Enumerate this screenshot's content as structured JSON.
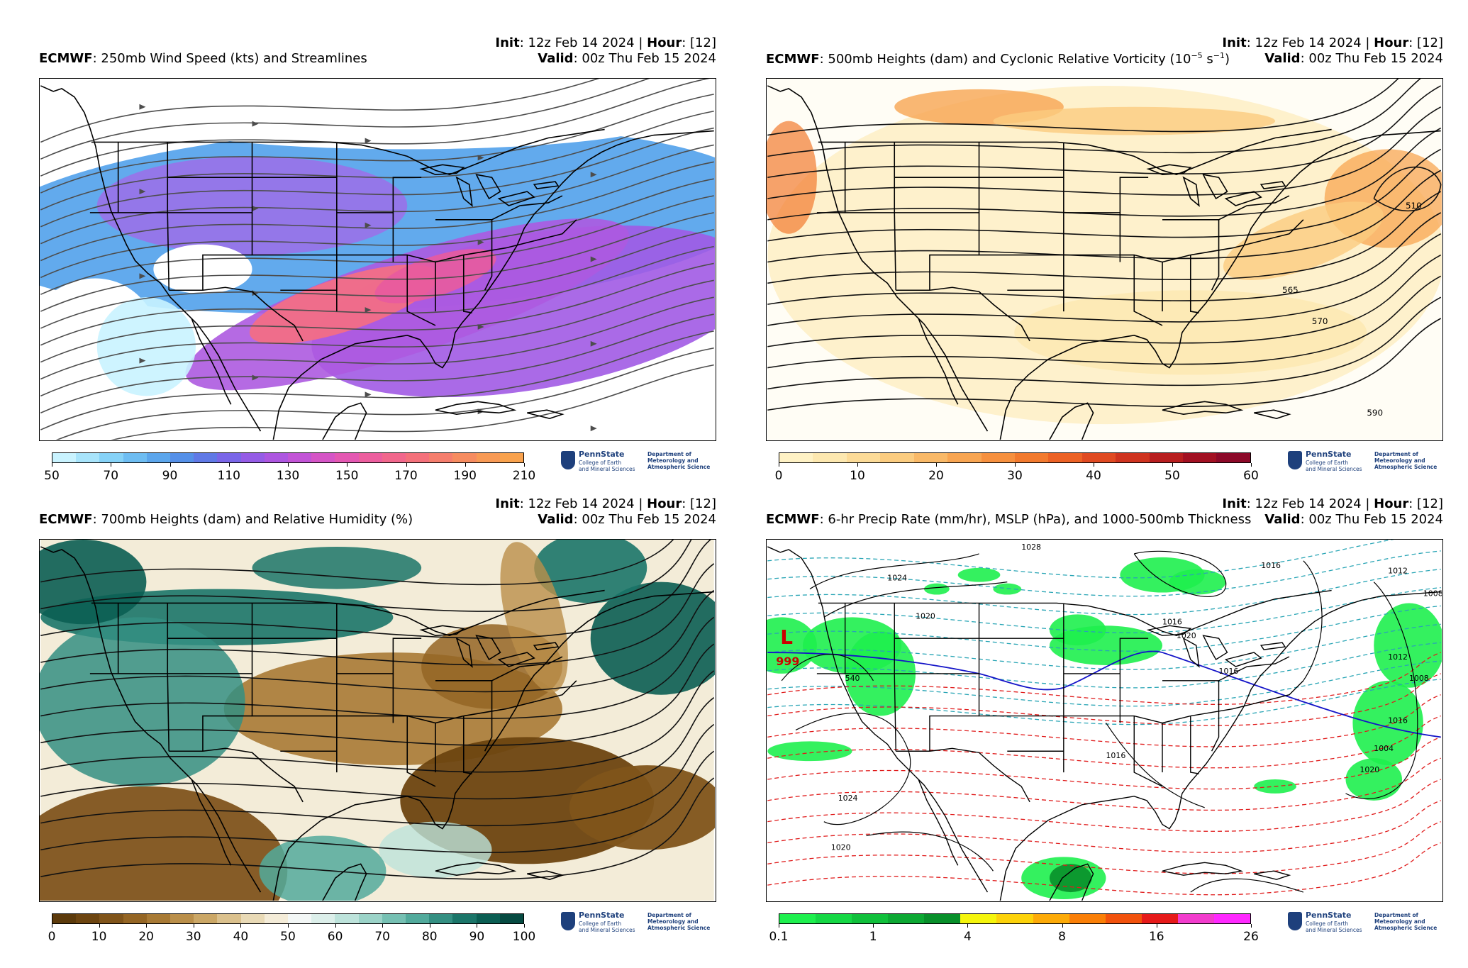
{
  "panels": [
    {
      "init_label": "Init",
      "init_value": ": 12z Feb 14 2024 | ",
      "hour_label": "Hour",
      "hour_value": ": [12]",
      "model": "ECMWF",
      "title": ": 250mb Wind Speed (kts) and Streamlines",
      "valid_label": "Valid",
      "valid_value": ": 00z Thu Feb 15 2024",
      "colorbar": {
        "ticks": [
          "50",
          "70",
          "90",
          "110",
          "130",
          "150",
          "170",
          "190",
          "210"
        ],
        "colors": [
          "#c9f3ff",
          "#a8e4fb",
          "#86d2f7",
          "#6ebdf2",
          "#5ca6ec",
          "#5590e8",
          "#6079e6",
          "#7a66e8",
          "#955ce6",
          "#ad56e0",
          "#c254d6",
          "#d555c6",
          "#e458b2",
          "#ec5e9e",
          "#f1678c",
          "#f4717b",
          "#f57e6d",
          "#f68c60",
          "#f89a55",
          "#f9a24d"
        ]
      },
      "map_labels": []
    },
    {
      "init_label": "Init",
      "init_value": ": 12z Feb 14 2024 | ",
      "hour_label": "Hour",
      "hour_value": ": [12]",
      "model": "ECMWF",
      "title": ": 500mb Heights (dam) and Cyclonic Relative Vorticity (10",
      "title_sup": "−5",
      "title_mid": " s",
      "title_sup2": "−1",
      "title_end": ")",
      "valid_label": "Valid",
      "valid_value": ": 00z Thu Feb 15 2024",
      "colorbar": {
        "ticks": [
          "0",
          "10",
          "20",
          "30",
          "40",
          "50",
          "60"
        ],
        "colors": [
          "#fff2c5",
          "#fde8b0",
          "#fcdb98",
          "#fbcc80",
          "#f9b968",
          "#f8a552",
          "#f6903f",
          "#f27a2f",
          "#ec6226",
          "#e04a22",
          "#cf331f",
          "#b81e1f",
          "#a21022",
          "#8c0828"
        ]
      },
      "map_labels": [
        "510",
        "565",
        "570",
        "590"
      ]
    },
    {
      "init_label": "Init",
      "init_value": ": 12z Feb 14 2024 | ",
      "hour_label": "Hour",
      "hour_value": ": [12]",
      "model": "ECMWF",
      "title": ": 700mb Heights (dam) and Relative Humidity (%)",
      "valid_label": "Valid",
      "valid_value": ": 00z Thu Feb 15 2024",
      "colorbar": {
        "ticks": [
          "0",
          "10",
          "20",
          "30",
          "40",
          "50",
          "60",
          "70",
          "80",
          "90",
          "100"
        ],
        "colors": [
          "#5c3a0b",
          "#6d4510",
          "#80541a",
          "#946524",
          "#a87a35",
          "#ba8f4a",
          "#cba766",
          "#dbc18d",
          "#e9dab6",
          "#f4ecd8",
          "#f3f7f6",
          "#dcefea",
          "#bde3db",
          "#9bd3c8",
          "#76c0b3",
          "#52aa9c",
          "#348f82",
          "#1b7569",
          "#0b5e53",
          "#064a41"
        ]
      },
      "map_labels": []
    },
    {
      "init_label": "Init",
      "init_value": ": 12z Feb 14 2024 | ",
      "hour_label": "Hour",
      "hour_value": ": [12]",
      "model": "ECMWF",
      "title": ": 6-hr Precip Rate (mm/hr), MSLP (hPa), and 1000-500mb Thickness",
      "valid_label": "Valid",
      "valid_value": ": 00z Thu Feb 15 2024",
      "colorbar": {
        "ticks": [
          "0.1",
          "1",
          "4",
          "8",
          "16",
          "26"
        ],
        "colors": [
          "#1ef04e",
          "#15d845",
          "#10c03b",
          "#0ca833",
          "#088f2a",
          "#f5f50c",
          "#fcd20a",
          "#fcaa08",
          "#fa7f07",
          "#f2520c",
          "#e61a1a",
          "#f23ccd",
          "#ff28ff"
        ]
      },
      "low_letter": "L",
      "low_value": "999",
      "map_labels": [
        "1028",
        "1024",
        "1020",
        "1016",
        "1012",
        "1008",
        "1004",
        "1020",
        "540",
        "1016",
        "1020",
        "1016",
        "1016",
        "1012",
        "1020",
        "1016",
        "1008",
        "1024"
      ]
    }
  ],
  "logo": {
    "name": "PennState",
    "college_1": "College of Earth",
    "college_2": "and Mineral Sciences",
    "dept_1": "Department of",
    "dept_2": "Meteorology and",
    "dept_3": "Atmospheric Science"
  }
}
